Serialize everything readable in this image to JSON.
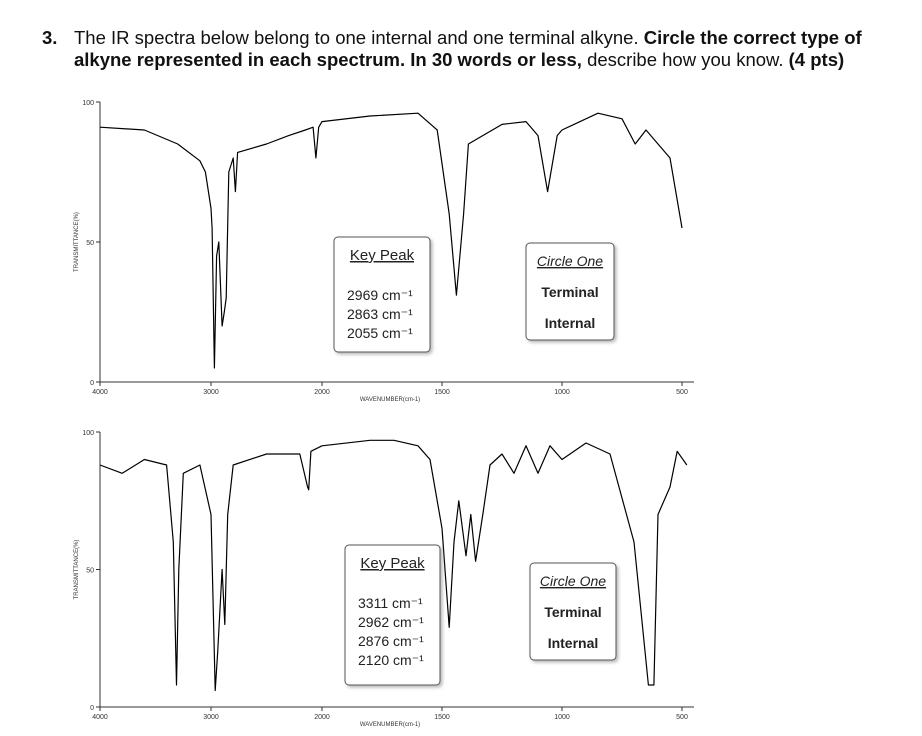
{
  "question": {
    "number": "3.",
    "segments": [
      {
        "text": "The IR spectra below belong to one internal and one terminal alkyne.",
        "bold": false
      },
      {
        "text": "Circle the correct type of alkyne represented in each spectrum.",
        "bold": true
      },
      {
        "text": "In 30 words or less,",
        "bold": true
      },
      {
        "text": "describe how you know.",
        "bold": false
      },
      {
        "text": "(4 pts)",
        "bold": true
      }
    ]
  },
  "chart_data": [
    {
      "type": "line",
      "ylabel": "TRANSMITTANCE(%)",
      "xlabel": "WAVENUMBER(cm-1)",
      "color": "#000000",
      "xlim": [
        4000,
        450
      ],
      "ylim": [
        0,
        100
      ],
      "x_scale_change_at": 2000,
      "xticks": [
        4000,
        3000,
        2000,
        1500,
        1000,
        500
      ],
      "yticks": [
        0,
        50,
        100
      ],
      "x": [
        4000,
        3600,
        3300,
        3100,
        3050,
        3000,
        2990,
        2969,
        2950,
        2930,
        2900,
        2880,
        2863,
        2840,
        2800,
        2780,
        2760,
        2500,
        2300,
        2150,
        2080,
        2055,
        2030,
        2000,
        1800,
        1600,
        1520,
        1470,
        1440,
        1410,
        1390,
        1250,
        1150,
        1100,
        1060,
        1020,
        1000,
        850,
        750,
        695,
        650,
        550,
        520,
        500
      ],
      "values": [
        91,
        90,
        85,
        79,
        75,
        62,
        55,
        5,
        45,
        50,
        20,
        25,
        30,
        75,
        80,
        68,
        82,
        85,
        88,
        90,
        91,
        80,
        91,
        93,
        95,
        96,
        90,
        60,
        31,
        60,
        85,
        92,
        93,
        88,
        68,
        88,
        90,
        96,
        94,
        85,
        90,
        80,
        65,
        55
      ],
      "key_peak_title": "Key Peak",
      "key_peaks": [
        "2969 cm⁻¹",
        "2863 cm⁻¹",
        "2055 cm⁻¹"
      ],
      "circle_title": "Circle One",
      "options": [
        "Terminal",
        "Internal"
      ]
    },
    {
      "type": "line",
      "ylabel": "TRANSMITTANCE(%)",
      "xlabel": "WAVENUMBER(cm-1)",
      "color": "#000000",
      "xlim": [
        4000,
        450
      ],
      "ylim": [
        0,
        100
      ],
      "x_scale_change_at": 2000,
      "xticks": [
        4000,
        3000,
        2000,
        1500,
        1000,
        500
      ],
      "yticks": [
        0,
        50,
        100
      ],
      "x": [
        4000,
        3800,
        3600,
        3400,
        3340,
        3311,
        3290,
        3250,
        3100,
        3000,
        2962,
        2940,
        2900,
        2876,
        2850,
        2800,
        2500,
        2200,
        2130,
        2120,
        2100,
        2000,
        1800,
        1700,
        1600,
        1550,
        1500,
        1470,
        1450,
        1430,
        1400,
        1380,
        1360,
        1330,
        1300,
        1250,
        1200,
        1150,
        1100,
        1050,
        1000,
        900,
        800,
        700,
        640,
        617,
        600,
        550,
        520,
        480
      ],
      "values": [
        88,
        85,
        90,
        88,
        60,
        8,
        50,
        85,
        88,
        70,
        6,
        20,
        50,
        30,
        70,
        88,
        92,
        92,
        80,
        79,
        93,
        95,
        97,
        97,
        95,
        90,
        65,
        29,
        60,
        75,
        55,
        70,
        53,
        70,
        88,
        92,
        85,
        95,
        85,
        95,
        90,
        96,
        92,
        60,
        8,
        8,
        70,
        80,
        93,
        88
      ],
      "key_peak_title": "Key Peak",
      "key_peaks": [
        "3311 cm⁻¹",
        "2962 cm⁻¹",
        "2876 cm⁻¹",
        "2120 cm⁻¹"
      ],
      "circle_title": "Circle One",
      "options": [
        "Terminal",
        "Internal"
      ]
    }
  ]
}
